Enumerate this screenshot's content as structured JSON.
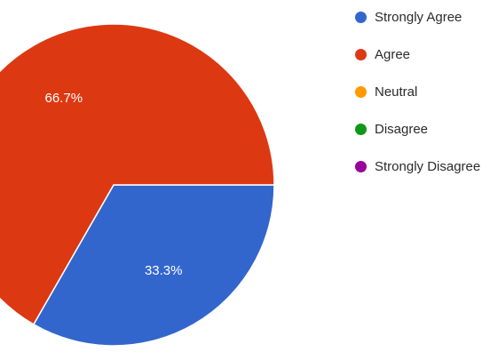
{
  "chart_data": {
    "type": "pie",
    "categories": [
      "Strongly Agree",
      "Agree",
      "Neutral",
      "Disagree",
      "Strongly Disagree"
    ],
    "values": [
      33.3,
      66.7,
      0,
      0,
      0
    ],
    "data_labels": [
      "33.3%",
      "66.7%",
      "",
      "",
      ""
    ],
    "colors": [
      "#3366cc",
      "#dc3912",
      "#ff9900",
      "#109618",
      "#990099"
    ],
    "legend_position": "right"
  }
}
